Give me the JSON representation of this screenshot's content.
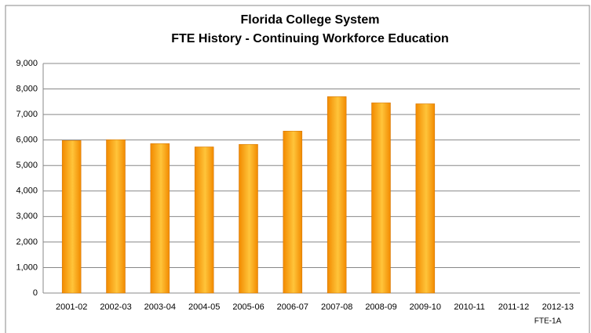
{
  "chart_data": {
    "type": "bar",
    "title": [
      "Florida College System",
      "FTE History - Continuing Workforce Education"
    ],
    "categories": [
      "2001-02",
      "2002-03",
      "2003-04",
      "2004-05",
      "2005-06",
      "2006-07",
      "2007-08",
      "2008-09",
      "2009-10",
      "2010-11",
      "2011-12",
      "2012-13"
    ],
    "values": [
      5980,
      6010,
      5860,
      5730,
      5830,
      6350,
      7700,
      7460,
      7420,
      null,
      null,
      null
    ],
    "color": "#f28a00",
    "ylim": [
      0,
      9000
    ],
    "yticks": [
      0,
      {
        "value": 1000,
        "label": "1,000"
      },
      {
        "value": 2000,
        "label": "2,000"
      },
      {
        "value": 3000,
        "label": "3,000"
      },
      {
        "value": 4000,
        "label": "4,000"
      },
      {
        "value": 5000,
        "label": "5,000"
      },
      {
        "value": 6000,
        "label": "6,000"
      },
      {
        "value": 7000,
        "label": "7,000"
      },
      {
        "value": 8000,
        "label": "8,000"
      },
      {
        "value": 9000,
        "label": "9,000"
      }
    ],
    "grid": true,
    "footnote": "FTE-1A"
  }
}
